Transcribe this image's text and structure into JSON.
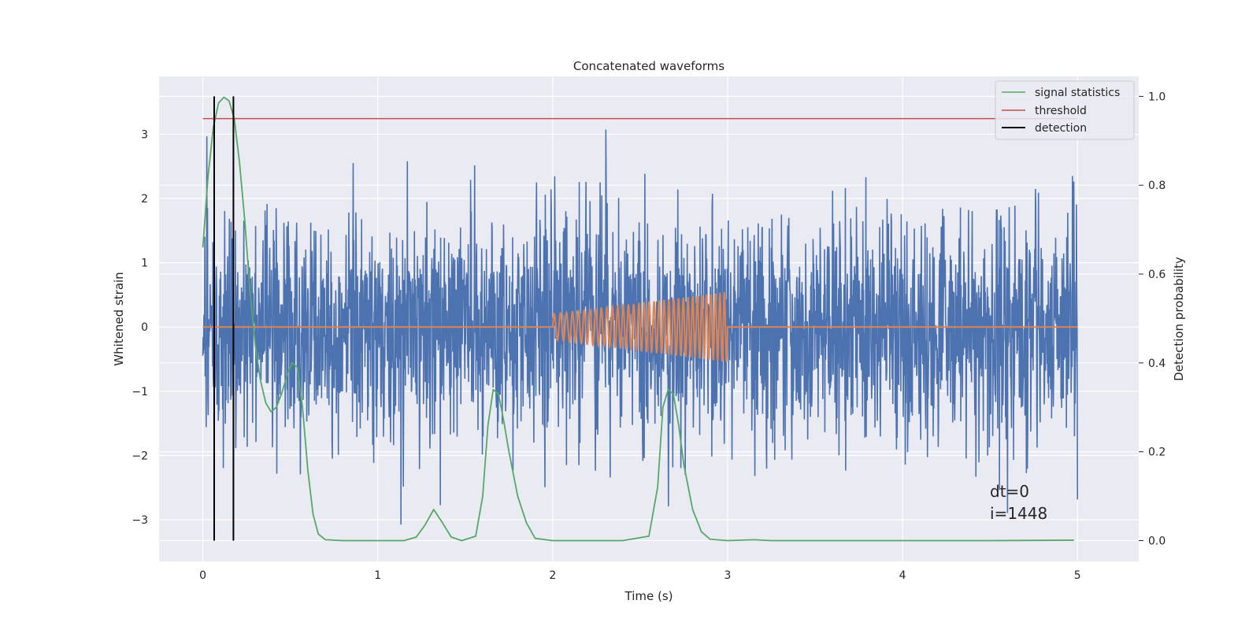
{
  "chart_data": {
    "type": "line",
    "title": "Concatenated waveforms",
    "xlabel": "Time (s)",
    "ylabel": "Whitened strain",
    "y2label": "Detection probability",
    "xlim": [
      -0.25,
      5.35
    ],
    "ylim": [
      -3.65,
      3.9
    ],
    "y2lim": [
      -0.047,
      1.045
    ],
    "xticks": [
      0,
      1,
      2,
      3,
      4,
      5
    ],
    "xtick_labels": [
      "0",
      "1",
      "2",
      "3",
      "4",
      "5"
    ],
    "yticks": [
      -3,
      -2,
      -1,
      0,
      1,
      2,
      3
    ],
    "ytick_labels": [
      "−3",
      "−2",
      "−1",
      "0",
      "1",
      "2",
      "3"
    ],
    "y2ticks": [
      0.0,
      0.2,
      0.4,
      0.6,
      0.8,
      1.0
    ],
    "y2tick_labels": [
      "0.0",
      "0.2",
      "0.4",
      "0.6",
      "0.8",
      "1.0"
    ],
    "grid": true,
    "legend_position": "top-right",
    "legend": [
      "signal statistics",
      "threshold",
      "detection"
    ],
    "series": [
      {
        "name": "whitened strain",
        "axis": "left",
        "color": "#4c72b0",
        "kind": "noise",
        "x_range": [
          0,
          5
        ],
        "sigma": 0.9
      },
      {
        "name": "injected waveform",
        "axis": "left",
        "color": "#dd8452",
        "kind": "chirp",
        "x_range": [
          0,
          5
        ],
        "chirp_start": 2.0,
        "chirp_end": 3.0,
        "amp_start": 0.2,
        "amp_end": 0.55
      },
      {
        "name": "signal statistics",
        "axis": "right",
        "color": "#55a868",
        "x": [
          0.0,
          0.03,
          0.06,
          0.09,
          0.12,
          0.15,
          0.18,
          0.21,
          0.24,
          0.27,
          0.3,
          0.33,
          0.36,
          0.39,
          0.42,
          0.45,
          0.48,
          0.51,
          0.54,
          0.57,
          0.6,
          0.63,
          0.66,
          0.7,
          0.8,
          1.0,
          1.15,
          1.22,
          1.27,
          1.32,
          1.37,
          1.42,
          1.48,
          1.56,
          1.6,
          1.63,
          1.66,
          1.69,
          1.72,
          1.75,
          1.8,
          1.85,
          1.9,
          2.0,
          2.4,
          2.55,
          2.6,
          2.63,
          2.66,
          2.69,
          2.72,
          2.75,
          2.8,
          2.85,
          2.9,
          3.0,
          3.15,
          3.25,
          3.5,
          4.0,
          4.5,
          4.98
        ],
        "y": [
          0.66,
          0.82,
          0.93,
          0.985,
          0.998,
          0.99,
          0.95,
          0.85,
          0.72,
          0.56,
          0.44,
          0.36,
          0.31,
          0.29,
          0.3,
          0.33,
          0.37,
          0.4,
          0.39,
          0.3,
          0.16,
          0.06,
          0.015,
          0.002,
          0.0,
          0.0,
          0.0,
          0.008,
          0.035,
          0.07,
          0.04,
          0.008,
          0.0,
          0.01,
          0.1,
          0.26,
          0.34,
          0.33,
          0.27,
          0.2,
          0.1,
          0.04,
          0.005,
          0.0,
          0.0,
          0.01,
          0.12,
          0.3,
          0.34,
          0.33,
          0.26,
          0.17,
          0.07,
          0.02,
          0.003,
          0.0,
          0.002,
          0.0,
          0.0,
          0.0,
          0.0,
          0.001
        ]
      },
      {
        "name": "threshold",
        "axis": "right",
        "color": "#c44e52",
        "x": [
          0,
          5
        ],
        "y": [
          0.95,
          0.95
        ]
      },
      {
        "name": "detection",
        "axis": "right",
        "color": "#000000",
        "vlines": [
          0.065,
          0.175
        ],
        "y_range": [
          0.0,
          1.0
        ]
      }
    ],
    "annotations": [
      "dt=0",
      "i=1448"
    ]
  }
}
